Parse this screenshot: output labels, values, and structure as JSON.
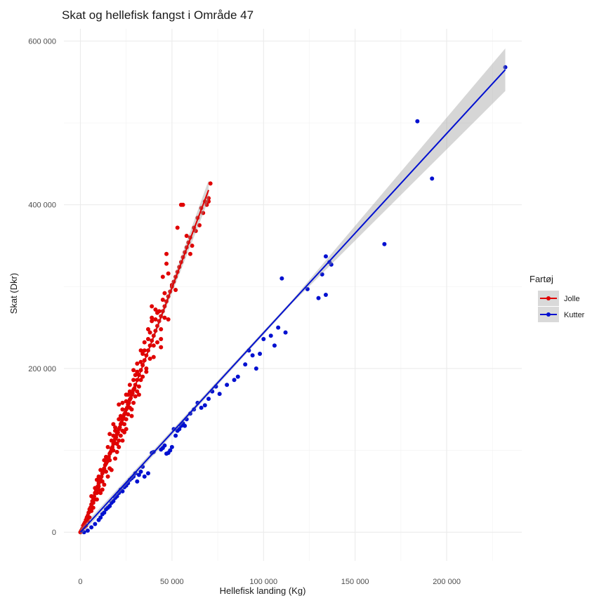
{
  "chart_data": {
    "type": "scatter",
    "title": "Skat og hellefisk fangst i Område 47",
    "xlabel": "Hellefisk landing (Kg)",
    "ylabel": "Skat (Dkr)",
    "xlim": [
      -9000,
      241000
    ],
    "ylim": [
      -35000,
      615000
    ],
    "x_ticks": [
      0,
      50000,
      100000,
      150000,
      200000
    ],
    "x_tick_labels": [
      "0",
      "50 000",
      "100 000",
      "150 000",
      "200 000"
    ],
    "y_ticks": [
      0,
      200000,
      400000,
      600000
    ],
    "y_tick_labels": [
      "0",
      "200 000",
      "400 000",
      "600 000"
    ],
    "grid": true,
    "legend": {
      "title": "Fartøj",
      "position": "right"
    },
    "series": [
      {
        "name": "Jolle",
        "color": "#e00000",
        "fit": {
          "x": [
            0,
            70000
          ],
          "y": [
            0,
            418000
          ],
          "band": "grey"
        },
        "points": [
          [
            0,
            0
          ],
          [
            500,
            2000
          ],
          [
            1000,
            4000
          ],
          [
            1500,
            8000
          ],
          [
            2000,
            10000
          ],
          [
            2500,
            12000
          ],
          [
            3000,
            15000
          ],
          [
            3500,
            18000
          ],
          [
            4000,
            20000
          ],
          [
            4500,
            24000
          ],
          [
            5000,
            28000
          ],
          [
            5500,
            30000
          ],
          [
            6000,
            34000
          ],
          [
            6500,
            38000
          ],
          [
            7000,
            42000
          ],
          [
            7500,
            44000
          ],
          [
            8000,
            48000
          ],
          [
            8500,
            50000
          ],
          [
            9000,
            54000
          ],
          [
            9500,
            56000
          ],
          [
            10000,
            60000
          ],
          [
            10500,
            62000
          ],
          [
            11000,
            66000
          ],
          [
            11500,
            68000
          ],
          [
            12000,
            72000
          ],
          [
            12500,
            76000
          ],
          [
            13000,
            78000
          ],
          [
            13500,
            82000
          ],
          [
            14000,
            84000
          ],
          [
            14500,
            86000
          ],
          [
            15000,
            90000
          ],
          [
            15500,
            92000
          ],
          [
            16000,
            96000
          ],
          [
            16500,
            98000
          ],
          [
            17000,
            102000
          ],
          [
            17500,
            104000
          ],
          [
            18000,
            108000
          ],
          [
            18500,
            110000
          ],
          [
            19000,
            114000
          ],
          [
            19500,
            116000
          ],
          [
            20000,
            120000
          ],
          [
            20500,
            122000
          ],
          [
            21000,
            126000
          ],
          [
            21500,
            128000
          ],
          [
            22000,
            132000
          ],
          [
            22500,
            134000
          ],
          [
            23000,
            138000
          ],
          [
            23500,
            140000
          ],
          [
            24000,
            144000
          ],
          [
            24500,
            146000
          ],
          [
            25000,
            150000
          ],
          [
            25500,
            152000
          ],
          [
            26000,
            156000
          ],
          [
            26500,
            158000
          ],
          [
            27000,
            162000
          ],
          [
            27500,
            164000
          ],
          [
            28000,
            168000
          ],
          [
            28500,
            170000
          ],
          [
            29000,
            174000
          ],
          [
            29500,
            176000
          ],
          [
            30000,
            180000
          ],
          [
            31000,
            186000
          ],
          [
            32000,
            192000
          ],
          [
            33000,
            198000
          ],
          [
            34000,
            204000
          ],
          [
            35000,
            210000
          ],
          [
            36000,
            216000
          ],
          [
            37000,
            222000
          ],
          [
            38000,
            228000
          ],
          [
            39000,
            234000
          ],
          [
            40000,
            240000
          ],
          [
            41000,
            246000
          ],
          [
            42000,
            252000
          ],
          [
            43000,
            258000
          ],
          [
            44000,
            264000
          ],
          [
            45000,
            270000
          ],
          [
            46000,
            276000
          ],
          [
            47000,
            282000
          ],
          [
            48000,
            288000
          ],
          [
            49000,
            294000
          ],
          [
            50000,
            300000
          ],
          [
            51000,
            306000
          ],
          [
            52000,
            312000
          ],
          [
            53000,
            318000
          ],
          [
            54000,
            324000
          ],
          [
            55000,
            330000
          ],
          [
            56000,
            336000
          ],
          [
            57000,
            342000
          ],
          [
            58000,
            348000
          ],
          [
            59000,
            354000
          ],
          [
            60000,
            360000
          ],
          [
            62000,
            372000
          ],
          [
            64000,
            384000
          ],
          [
            66000,
            396000
          ],
          [
            68000,
            404000
          ],
          [
            70000,
            408000
          ],
          [
            71000,
            426000
          ],
          [
            8000,
            40000
          ],
          [
            12000,
            62000
          ],
          [
            16000,
            88000
          ],
          [
            20000,
            108000
          ],
          [
            24000,
            132000
          ],
          [
            28000,
            150000
          ],
          [
            32000,
            178000
          ],
          [
            36000,
            200000
          ],
          [
            40000,
            228000
          ],
          [
            44000,
            248000
          ],
          [
            10000,
            68000
          ],
          [
            14000,
            92000
          ],
          [
            18000,
            118000
          ],
          [
            22000,
            142000
          ],
          [
            26000,
            168000
          ],
          [
            30000,
            192000
          ],
          [
            34000,
            218000
          ],
          [
            38000,
            244000
          ],
          [
            42000,
            268000
          ],
          [
            46000,
            292000
          ],
          [
            12000,
            52000
          ],
          [
            16000,
            78000
          ],
          [
            20000,
            98000
          ],
          [
            24000,
            122000
          ],
          [
            28000,
            142000
          ],
          [
            32000,
            168000
          ],
          [
            36000,
            196000
          ],
          [
            40000,
            214000
          ],
          [
            44000,
            236000
          ],
          [
            48000,
            260000
          ],
          [
            6000,
            44000
          ],
          [
            10000,
            52000
          ],
          [
            14000,
            74000
          ],
          [
            18000,
            100000
          ],
          [
            22000,
            118000
          ],
          [
            26000,
            144000
          ],
          [
            30000,
            166000
          ],
          [
            34000,
            190000
          ],
          [
            38000,
            212000
          ],
          [
            42000,
            232000
          ],
          [
            21000,
            156000
          ],
          [
            23000,
            150000
          ],
          [
            25000,
            160000
          ],
          [
            27000,
            172000
          ],
          [
            29000,
            186000
          ],
          [
            31000,
            196000
          ],
          [
            33000,
            208000
          ],
          [
            35000,
            222000
          ],
          [
            37000,
            236000
          ],
          [
            39000,
            258000
          ],
          [
            16000,
            120000
          ],
          [
            18000,
            132000
          ],
          [
            19000,
            124000
          ],
          [
            21000,
            112000
          ],
          [
            23000,
            124000
          ],
          [
            25000,
            138000
          ],
          [
            27000,
            152000
          ],
          [
            29000,
            158000
          ],
          [
            31000,
            172000
          ],
          [
            33000,
            186000
          ],
          [
            39000,
            276000
          ],
          [
            41000,
            272000
          ],
          [
            45000,
            312000
          ],
          [
            47000,
            328000
          ],
          [
            47000,
            340000
          ],
          [
            48000,
            316000
          ],
          [
            50000,
            302000
          ],
          [
            52000,
            296000
          ],
          [
            53000,
            372000
          ],
          [
            55000,
            400000
          ],
          [
            56000,
            400000
          ],
          [
            58000,
            362000
          ],
          [
            60000,
            340000
          ],
          [
            61000,
            350000
          ],
          [
            63000,
            368000
          ],
          [
            65000,
            375000
          ],
          [
            67000,
            390000
          ],
          [
            69000,
            400000
          ],
          [
            70000,
            404000
          ],
          [
            44000,
            226000
          ],
          [
            7000,
            30000
          ],
          [
            9000,
            40000
          ],
          [
            11000,
            48000
          ],
          [
            13000,
            58000
          ],
          [
            15000,
            68000
          ],
          [
            17000,
            76000
          ],
          [
            19000,
            90000
          ],
          [
            21000,
            104000
          ],
          [
            23000,
            112000
          ],
          [
            25000,
            126000
          ],
          [
            9000,
            64000
          ],
          [
            11000,
            76000
          ],
          [
            13000,
            88000
          ],
          [
            15000,
            104000
          ],
          [
            17000,
            112000
          ],
          [
            19000,
            128000
          ],
          [
            21000,
            138000
          ],
          [
            23000,
            158000
          ],
          [
            25000,
            168000
          ],
          [
            27000,
            180000
          ],
          [
            29000,
            198000
          ],
          [
            31000,
            206000
          ],
          [
            33000,
            222000
          ],
          [
            35000,
            232000
          ],
          [
            37000,
            248000
          ],
          [
            39000,
            262000
          ],
          [
            41000,
            260000
          ],
          [
            43000,
            270000
          ],
          [
            45000,
            284000
          ],
          [
            46000,
            262000
          ],
          [
            3000,
            8000
          ],
          [
            4000,
            14000
          ],
          [
            5000,
            18000
          ],
          [
            2000,
            6000
          ],
          [
            1000,
            1000
          ],
          [
            6000,
            26000
          ],
          [
            7000,
            36000
          ],
          [
            8000,
            54000
          ],
          [
            9000,
            48000
          ],
          [
            10000,
            56000
          ]
        ]
      },
      {
        "name": "Kutter",
        "color": "#0010d0",
        "fit": {
          "x": [
            0,
            232000
          ],
          "y": [
            0,
            565000
          ],
          "band": "grey"
        },
        "points": [
          [
            2000,
            0
          ],
          [
            4000,
            2000
          ],
          [
            6000,
            6000
          ],
          [
            8000,
            10000
          ],
          [
            10000,
            15000
          ],
          [
            11000,
            18000
          ],
          [
            12000,
            22000
          ],
          [
            13000,
            24000
          ],
          [
            14000,
            28000
          ],
          [
            15000,
            30000
          ],
          [
            16000,
            32000
          ],
          [
            17000,
            36000
          ],
          [
            18000,
            38000
          ],
          [
            19000,
            42000
          ],
          [
            20000,
            44000
          ],
          [
            21000,
            48000
          ],
          [
            22000,
            52000
          ],
          [
            23000,
            50000
          ],
          [
            24000,
            55000
          ],
          [
            25000,
            57000
          ],
          [
            26000,
            60000
          ],
          [
            27000,
            64000
          ],
          [
            28000,
            66000
          ],
          [
            29000,
            68000
          ],
          [
            30000,
            72000
          ],
          [
            31000,
            62000
          ],
          [
            32000,
            70000
          ],
          [
            33000,
            74000
          ],
          [
            34000,
            80000
          ],
          [
            35000,
            68000
          ],
          [
            37000,
            72000
          ],
          [
            39000,
            97000
          ],
          [
            40000,
            98000
          ],
          [
            44000,
            101000
          ],
          [
            45000,
            103000
          ],
          [
            46000,
            106000
          ],
          [
            47000,
            96000
          ],
          [
            48000,
            97000
          ],
          [
            49000,
            100000
          ],
          [
            50000,
            104000
          ],
          [
            51000,
            126000
          ],
          [
            52000,
            118000
          ],
          [
            53000,
            124000
          ],
          [
            54000,
            126000
          ],
          [
            55000,
            130000
          ],
          [
            56000,
            133000
          ],
          [
            57000,
            130000
          ],
          [
            58000,
            138000
          ],
          [
            60000,
            145000
          ],
          [
            62000,
            150000
          ],
          [
            64000,
            158000
          ],
          [
            66000,
            152000
          ],
          [
            68000,
            155000
          ],
          [
            70000,
            163000
          ],
          [
            72000,
            172000
          ],
          [
            74000,
            178000
          ],
          [
            76000,
            169000
          ],
          [
            80000,
            180000
          ],
          [
            84000,
            186000
          ],
          [
            86000,
            190000
          ],
          [
            90000,
            205000
          ],
          [
            92000,
            222000
          ],
          [
            94000,
            216000
          ],
          [
            96000,
            200000
          ],
          [
            98000,
            218000
          ],
          [
            100000,
            236000
          ],
          [
            104000,
            240000
          ],
          [
            106000,
            228000
          ],
          [
            108000,
            250000
          ],
          [
            110000,
            310000
          ],
          [
            112000,
            244000
          ],
          [
            124000,
            297000
          ],
          [
            130000,
            286000
          ],
          [
            132000,
            315000
          ],
          [
            134000,
            337000
          ],
          [
            134000,
            290000
          ],
          [
            136000,
            330000
          ],
          [
            137000,
            327000
          ],
          [
            166000,
            352000
          ],
          [
            184000,
            502000
          ],
          [
            192000,
            432000
          ],
          [
            232000,
            568000
          ]
        ]
      }
    ]
  }
}
